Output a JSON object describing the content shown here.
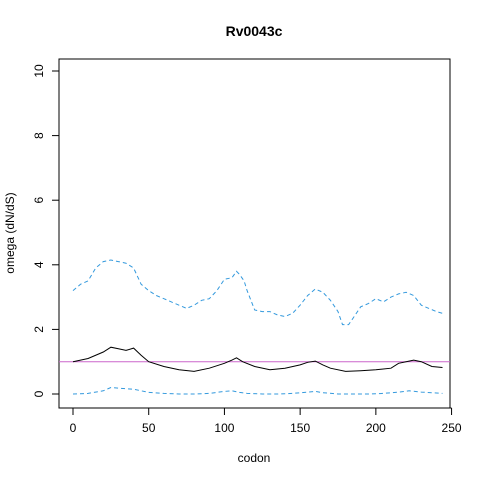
{
  "chart_data": {
    "type": "line",
    "title": "Rv0043c",
    "xlabel": "codon",
    "ylabel": "omega (dN/dS)",
    "xlim": [
      0,
      245
    ],
    "ylim": [
      0,
      10
    ],
    "x_ticks": [
      0,
      50,
      100,
      150,
      200,
      250
    ],
    "y_ticks": [
      0,
      2,
      4,
      6,
      8,
      10
    ],
    "grid": false,
    "legend": "none",
    "reference_line": {
      "y": 1,
      "color": "#cc66cc"
    },
    "series": [
      {
        "style": "solid",
        "color": "#000000",
        "x": [
          0,
          10,
          20,
          25,
          30,
          35,
          40,
          45,
          50,
          60,
          70,
          80,
          90,
          100,
          105,
          108,
          112,
          120,
          130,
          140,
          150,
          155,
          160,
          165,
          170,
          180,
          190,
          200,
          210,
          215,
          220,
          225,
          230,
          237,
          244
        ],
        "y": [
          1.0,
          1.1,
          1.3,
          1.45,
          1.4,
          1.35,
          1.42,
          1.2,
          1.0,
          0.85,
          0.75,
          0.7,
          0.8,
          0.95,
          1.05,
          1.12,
          1.0,
          0.85,
          0.75,
          0.8,
          0.9,
          0.98,
          1.02,
          0.9,
          0.8,
          0.7,
          0.72,
          0.75,
          0.8,
          0.95,
          1.0,
          1.05,
          1.0,
          0.85,
          0.82
        ]
      },
      {
        "style": "dashed",
        "color": "#3399dd",
        "x": [
          0,
          5,
          10,
          15,
          20,
          25,
          30,
          35,
          40,
          45,
          50,
          55,
          60,
          70,
          75,
          80,
          85,
          90,
          95,
          100,
          105,
          108,
          110,
          113,
          115,
          120,
          125,
          130,
          135,
          140,
          145,
          150,
          155,
          160,
          165,
          170,
          175,
          178,
          182,
          185,
          190,
          195,
          200,
          205,
          210,
          215,
          220,
          225,
          230,
          235,
          240,
          244
        ],
        "y": [
          3.2,
          3.4,
          3.5,
          3.9,
          4.1,
          4.15,
          4.1,
          4.05,
          3.9,
          3.4,
          3.2,
          3.05,
          2.95,
          2.75,
          2.65,
          2.75,
          2.9,
          2.95,
          3.2,
          3.55,
          3.6,
          3.8,
          3.7,
          3.5,
          3.2,
          2.6,
          2.55,
          2.55,
          2.45,
          2.4,
          2.5,
          2.75,
          3.05,
          3.25,
          3.15,
          2.9,
          2.55,
          2.15,
          2.15,
          2.35,
          2.7,
          2.8,
          2.95,
          2.85,
          3.0,
          3.1,
          3.15,
          3.05,
          2.75,
          2.65,
          2.55,
          2.5
        ]
      },
      {
        "style": "dashed",
        "color": "#3399dd",
        "x": [
          0,
          10,
          20,
          25,
          30,
          40,
          50,
          60,
          70,
          80,
          90,
          100,
          105,
          110,
          115,
          125,
          135,
          145,
          155,
          160,
          165,
          175,
          185,
          195,
          205,
          215,
          222,
          230,
          240,
          244
        ],
        "y": [
          0.0,
          0.02,
          0.1,
          0.2,
          0.18,
          0.15,
          0.05,
          0.02,
          0.0,
          0.0,
          0.02,
          0.08,
          0.1,
          0.05,
          0.02,
          0.0,
          0.0,
          0.02,
          0.06,
          0.08,
          0.04,
          0.0,
          0.0,
          0.0,
          0.02,
          0.06,
          0.1,
          0.06,
          0.03,
          0.02
        ]
      }
    ]
  }
}
